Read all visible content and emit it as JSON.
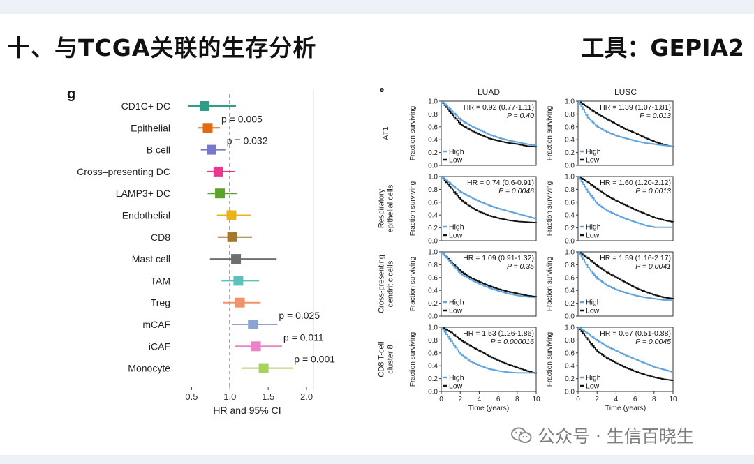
{
  "slide": {
    "title": "十、与TCGA关联的生存分析",
    "tool": "工具：GEPIA2",
    "watermark": "公众号 · 生信百晓生"
  },
  "chart_data": [
    {
      "type": "forest",
      "panel_label": "g",
      "xlabel": "HR and 95% CI",
      "xlim": [
        0.35,
        2.1
      ],
      "xticks": [
        0.5,
        1.0,
        1.5,
        2.0
      ],
      "xtick_labels": [
        "0.5",
        "1.0",
        "1.5",
        "2.0"
      ],
      "reference_line": 1.0,
      "rows": [
        {
          "label": "CD1C+ DC",
          "hr": 0.67,
          "lo": 0.45,
          "hi": 1.08,
          "color": "#2e9e88",
          "p": ""
        },
        {
          "label": "Epithelial",
          "hr": 0.71,
          "lo": 0.58,
          "hi": 0.87,
          "color": "#e26a12",
          "p": "p = 0.005"
        },
        {
          "label": "B cell",
          "hr": 0.76,
          "lo": 0.62,
          "hi": 0.94,
          "color": "#7878c8",
          "p": "p = 0.032"
        },
        {
          "label": "Cross–presenting DC",
          "hr": 0.85,
          "lo": 0.7,
          "hi": 1.07,
          "color": "#e8398c",
          "p": ""
        },
        {
          "label": "LAMP3+ DC",
          "hr": 0.87,
          "lo": 0.71,
          "hi": 1.09,
          "color": "#5ba32b",
          "p": ""
        },
        {
          "label": "Endothelial",
          "hr": 1.02,
          "lo": 0.83,
          "hi": 1.27,
          "color": "#e9b41a",
          "p": ""
        },
        {
          "label": "CD8",
          "hr": 1.03,
          "lo": 0.84,
          "hi": 1.29,
          "color": "#a5782a",
          "p": ""
        },
        {
          "label": "Mast cell",
          "hr": 1.08,
          "lo": 0.74,
          "hi": 1.61,
          "color": "#6e6e6e",
          "p": ""
        },
        {
          "label": "TAM",
          "hr": 1.11,
          "lo": 0.89,
          "hi": 1.38,
          "color": "#5bc3bb",
          "p": ""
        },
        {
          "label": "Treg",
          "hr": 1.13,
          "lo": 0.91,
          "hi": 1.4,
          "color": "#f1936a",
          "p": ""
        },
        {
          "label": "mCAF",
          "hr": 1.3,
          "lo": 1.03,
          "hi": 1.62,
          "color": "#8ca2d2",
          "p": "p = 0.025"
        },
        {
          "label": "iCAF",
          "hr": 1.34,
          "lo": 1.07,
          "hi": 1.68,
          "color": "#ec82c7",
          "p": "p = 0.011"
        },
        {
          "label": "Monocyte",
          "hr": 1.44,
          "lo": 1.15,
          "hi": 1.82,
          "color": "#a8d35a",
          "p": "p = 0.001"
        }
      ]
    },
    {
      "type": "line",
      "subtype": "kaplan-meier grid",
      "panel_label": "e",
      "columns": [
        "LUAD",
        "LUSC"
      ],
      "row_labels": [
        [
          "AT1"
        ],
        [
          "Respiratory",
          "epithelial cells"
        ],
        [
          "Cross-presenting",
          "dendritic cells"
        ],
        [
          "CD8 T-cell",
          "cluster 8"
        ]
      ],
      "ylabel": "Fraction surviving",
      "xlabel": "Time (years)",
      "xlim": [
        0,
        10
      ],
      "ylim": [
        0,
        1
      ],
      "xticks": [
        0,
        2,
        4,
        6,
        8,
        10
      ],
      "yticks": [
        "0.0",
        "0.2",
        "0.4",
        "0.6",
        "0.8",
        "1.0"
      ],
      "legend": [
        {
          "name": "High",
          "color": "#5fa3dc"
        },
        {
          "name": "Low",
          "color": "#111111"
        }
      ],
      "panels": [
        [
          {
            "hr": "HR = 0.92 (0.77-1.11)",
            "p": "P = 0.40",
            "high": [
              [
                0,
                1
              ],
              [
                1,
                0.86
              ],
              [
                2,
                0.71
              ],
              [
                3,
                0.62
              ],
              [
                4,
                0.55
              ],
              [
                5,
                0.48
              ],
              [
                6,
                0.43
              ],
              [
                7,
                0.39
              ],
              [
                8,
                0.36
              ],
              [
                9,
                0.33
              ],
              [
                10,
                0.31
              ]
            ],
            "low": [
              [
                0,
                1
              ],
              [
                1,
                0.81
              ],
              [
                2,
                0.64
              ],
              [
                3,
                0.55
              ],
              [
                4,
                0.48
              ],
              [
                5,
                0.42
              ],
              [
                6,
                0.38
              ],
              [
                7,
                0.35
              ],
              [
                8,
                0.33
              ],
              [
                9,
                0.3
              ],
              [
                10,
                0.29
              ]
            ]
          },
          {
            "hr": "HR = 1.39 (1.07-1.81)",
            "p": "P = 0.013",
            "high": [
              [
                0,
                1
              ],
              [
                1,
                0.74
              ],
              [
                2,
                0.6
              ],
              [
                3,
                0.52
              ],
              [
                4,
                0.46
              ],
              [
                5,
                0.42
              ],
              [
                6,
                0.38
              ],
              [
                7,
                0.35
              ],
              [
                8,
                0.33
              ],
              [
                9,
                0.31
              ],
              [
                10,
                0.3
              ]
            ],
            "low": [
              [
                0,
                1
              ],
              [
                1,
                0.9
              ],
              [
                2,
                0.8
              ],
              [
                3,
                0.72
              ],
              [
                4,
                0.64
              ],
              [
                5,
                0.56
              ],
              [
                6,
                0.5
              ],
              [
                7,
                0.43
              ],
              [
                8,
                0.37
              ],
              [
                9,
                0.32
              ],
              [
                10,
                0.29
              ]
            ]
          }
        ],
        [
          {
            "hr": "HR = 0.74 (0.6-0.91)",
            "p": "P = 0.0046",
            "high": [
              [
                0,
                1
              ],
              [
                1,
                0.88
              ],
              [
                2,
                0.76
              ],
              [
                3,
                0.68
              ],
              [
                4,
                0.61
              ],
              [
                5,
                0.55
              ],
              [
                6,
                0.5
              ],
              [
                7,
                0.46
              ],
              [
                8,
                0.42
              ],
              [
                9,
                0.38
              ],
              [
                10,
                0.34
              ]
            ],
            "low": [
              [
                0,
                1
              ],
              [
                1,
                0.82
              ],
              [
                2,
                0.64
              ],
              [
                3,
                0.53
              ],
              [
                4,
                0.45
              ],
              [
                5,
                0.39
              ],
              [
                6,
                0.35
              ],
              [
                7,
                0.32
              ],
              [
                8,
                0.3
              ],
              [
                9,
                0.29
              ],
              [
                10,
                0.28
              ]
            ]
          },
          {
            "hr": "HR = 1.60 (1.20-2.12)",
            "p": "P = 0.0013",
            "high": [
              [
                0,
                1
              ],
              [
                1,
                0.76
              ],
              [
                2,
                0.57
              ],
              [
                3,
                0.47
              ],
              [
                4,
                0.4
              ],
              [
                5,
                0.34
              ],
              [
                6,
                0.29
              ],
              [
                7,
                0.24
              ],
              [
                8,
                0.21
              ],
              [
                9,
                0.21
              ],
              [
                10,
                0.21
              ]
            ],
            "low": [
              [
                0,
                1
              ],
              [
                1,
                0.91
              ],
              [
                2,
                0.8
              ],
              [
                3,
                0.7
              ],
              [
                4,
                0.62
              ],
              [
                5,
                0.55
              ],
              [
                6,
                0.48
              ],
              [
                7,
                0.42
              ],
              [
                8,
                0.36
              ],
              [
                9,
                0.32
              ],
              [
                10,
                0.29
              ]
            ]
          }
        ],
        [
          {
            "hr": "HR = 1.09 (0.91-1.32)",
            "p": "P = 0.35",
            "high": [
              [
                0,
                1
              ],
              [
                1,
                0.82
              ],
              [
                2,
                0.66
              ],
              [
                3,
                0.57
              ],
              [
                4,
                0.5
              ],
              [
                5,
                0.44
              ],
              [
                6,
                0.39
              ],
              [
                7,
                0.35
              ],
              [
                8,
                0.32
              ],
              [
                9,
                0.3
              ],
              [
                10,
                0.29
              ]
            ],
            "low": [
              [
                0,
                1
              ],
              [
                1,
                0.84
              ],
              [
                2,
                0.7
              ],
              [
                3,
                0.6
              ],
              [
                4,
                0.53
              ],
              [
                5,
                0.47
              ],
              [
                6,
                0.42
              ],
              [
                7,
                0.38
              ],
              [
                8,
                0.35
              ],
              [
                9,
                0.32
              ],
              [
                10,
                0.3
              ]
            ]
          },
          {
            "hr": "HR = 1.59 (1.16-2.17)",
            "p": "P = 0.0041",
            "high": [
              [
                0,
                1
              ],
              [
                1,
                0.76
              ],
              [
                2,
                0.58
              ],
              [
                3,
                0.48
              ],
              [
                4,
                0.41
              ],
              [
                5,
                0.36
              ],
              [
                6,
                0.32
              ],
              [
                7,
                0.29
              ],
              [
                8,
                0.27
              ],
              [
                9,
                0.25
              ],
              [
                10,
                0.25
              ]
            ],
            "low": [
              [
                0,
                1
              ],
              [
                1,
                0.9
              ],
              [
                2,
                0.78
              ],
              [
                3,
                0.68
              ],
              [
                4,
                0.6
              ],
              [
                5,
                0.52
              ],
              [
                6,
                0.44
              ],
              [
                7,
                0.38
              ],
              [
                8,
                0.33
              ],
              [
                9,
                0.29
              ],
              [
                10,
                0.27
              ]
            ]
          }
        ],
        [
          {
            "hr": "HR = 1.53 (1.26-1.86)",
            "p": "P = 0.000016",
            "high": [
              [
                0,
                1
              ],
              [
                1,
                0.78
              ],
              [
                2,
                0.58
              ],
              [
                3,
                0.47
              ],
              [
                4,
                0.4
              ],
              [
                5,
                0.35
              ],
              [
                6,
                0.32
              ],
              [
                7,
                0.3
              ],
              [
                8,
                0.29
              ],
              [
                9,
                0.29
              ],
              [
                10,
                0.29
              ]
            ],
            "low": [
              [
                0,
                1
              ],
              [
                1,
                0.92
              ],
              [
                2,
                0.8
              ],
              [
                3,
                0.71
              ],
              [
                4,
                0.63
              ],
              [
                5,
                0.55
              ],
              [
                6,
                0.48
              ],
              [
                7,
                0.42
              ],
              [
                8,
                0.37
              ],
              [
                9,
                0.32
              ],
              [
                10,
                0.28
              ]
            ]
          },
          {
            "hr": "HR = 0.67 (0.51-0.88)",
            "p": "P = 0.0045",
            "high": [
              [
                0,
                1
              ],
              [
                1,
                0.9
              ],
              [
                2,
                0.79
              ],
              [
                3,
                0.7
              ],
              [
                4,
                0.63
              ],
              [
                5,
                0.56
              ],
              [
                6,
                0.5
              ],
              [
                7,
                0.44
              ],
              [
                8,
                0.38
              ],
              [
                9,
                0.34
              ],
              [
                10,
                0.3
              ]
            ],
            "low": [
              [
                0,
                1
              ],
              [
                1,
                0.8
              ],
              [
                2,
                0.62
              ],
              [
                3,
                0.52
              ],
              [
                4,
                0.44
              ],
              [
                5,
                0.37
              ],
              [
                6,
                0.31
              ],
              [
                7,
                0.26
              ],
              [
                8,
                0.22
              ],
              [
                9,
                0.19
              ],
              [
                10,
                0.17
              ]
            ]
          }
        ]
      ]
    }
  ]
}
